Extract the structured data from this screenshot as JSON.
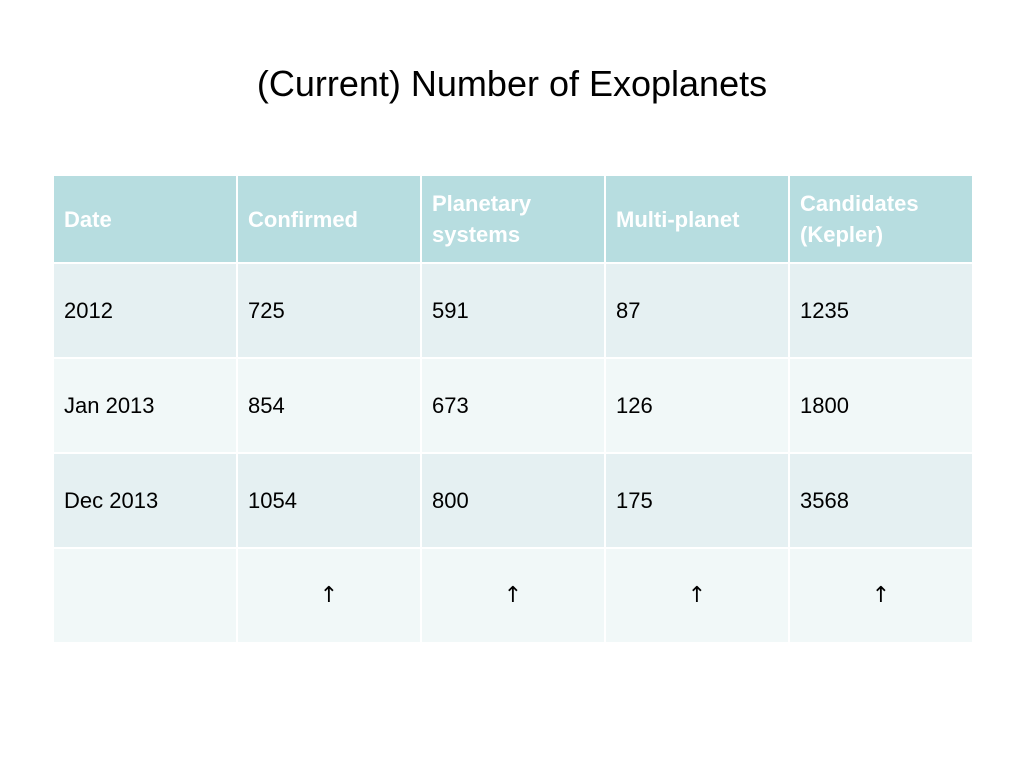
{
  "title": "(Current) Number of Exoplanets",
  "colors": {
    "header_bg": "#b7dde0",
    "header_text": "#ffffff",
    "row_odd_bg": "#e5f0f2",
    "row_even_bg": "#f1f8f8"
  },
  "table": {
    "headers": [
      "Date",
      "Confirmed",
      "Planetary systems",
      "Multi-planet",
      "Candidates (Kepler)"
    ],
    "rows": [
      [
        "2012",
        "725",
        "591",
        "87",
        "1235"
      ],
      [
        "Jan 2013",
        "854",
        "673",
        "126",
        "1800"
      ],
      [
        "Dec 2013",
        "1054",
        "800",
        "175",
        "3568"
      ],
      [
        "",
        "↑",
        "↑",
        "↑",
        "↑"
      ]
    ]
  }
}
